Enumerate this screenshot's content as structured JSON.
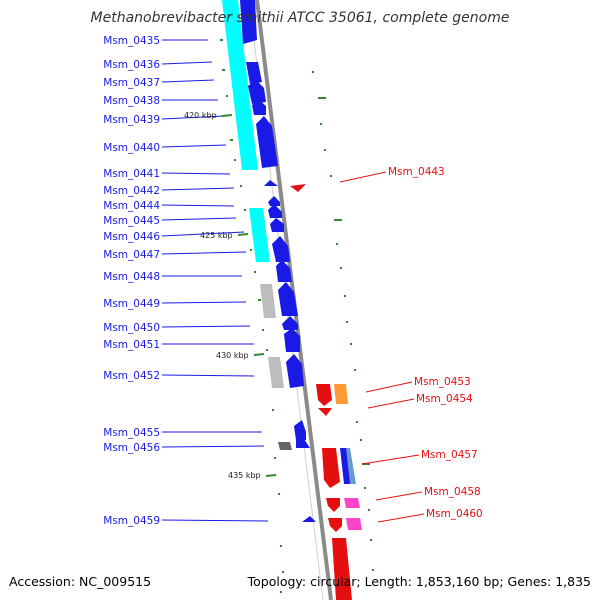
{
  "title": "Methanobrevibacter smithii ATCC 35061, complete genome",
  "footer": {
    "accession": "Accession: NC_009515",
    "summary": "Topology: circular; Length: 1,853,160 bp; Genes: 1,835"
  },
  "colors": {
    "forward": "#1a1ae6",
    "reverse": "#e60f0f",
    "rna": "#00ffff",
    "gray_feature": "#bdbdbd",
    "dark_gray_feature": "#666666",
    "orange_feature": "#ff9933",
    "steel_feature": "#6699cc",
    "pink_feature": "#ff44cc",
    "backbone": "#8a8a8a",
    "gc_mark": "#2e8b2e"
  },
  "kbp_marks": [
    "420 kbp",
    "425 kbp",
    "430 kbp",
    "435 kbp"
  ],
  "left_labels": [
    "Msm_0435",
    "Msm_0436",
    "Msm_0437",
    "Msm_0438",
    "Msm_0439",
    "Msm_0440",
    "Msm_0441",
    "Msm_0442",
    "Msm_0444",
    "Msm_0445",
    "Msm_0446",
    "Msm_0447",
    "Msm_0448",
    "Msm_0449",
    "Msm_0450",
    "Msm_0451",
    "Msm_0452",
    "Msm_0455",
    "Msm_0456",
    "Msm_0459"
  ],
  "right_labels": [
    "Msm_0443",
    "Msm_0453",
    "Msm_0454",
    "Msm_0457",
    "Msm_0458",
    "Msm_0460"
  ]
}
